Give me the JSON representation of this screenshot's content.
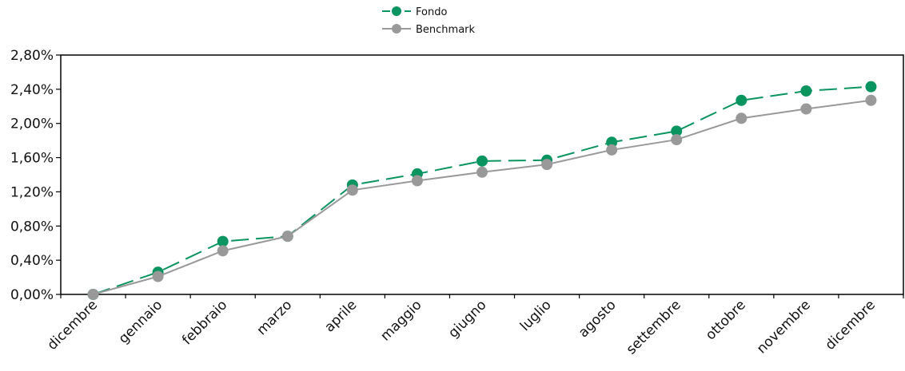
{
  "chart_data": {
    "type": "line",
    "title": "",
    "xlabel": "",
    "ylabel": "",
    "categories": [
      "dicembre",
      "gennaio",
      "febbraio",
      "marzo",
      "aprile",
      "maggio",
      "giugno",
      "luglio",
      "agosto",
      "settembre",
      "ottobre",
      "novembre",
      "dicembre"
    ],
    "ylim": [
      0,
      2.8
    ],
    "yticks": [
      0,
      0.4,
      0.8,
      1.2,
      1.6,
      2.0,
      2.4,
      2.8
    ],
    "ytick_labels": [
      "0,00%",
      "0,40%",
      "0,80%",
      "1,20%",
      "1,60%",
      "2,00%",
      "2,40%",
      "2,80%"
    ],
    "grid": false,
    "legend_position": "top-center",
    "series": [
      {
        "name": "Fondo",
        "color": "#0a9460",
        "line_style": "dashed",
        "values": [
          0.0,
          0.26,
          0.62,
          0.68,
          1.28,
          1.41,
          1.56,
          1.57,
          1.78,
          1.91,
          2.27,
          2.38,
          2.43
        ]
      },
      {
        "name": "Benchmark",
        "color": "#999999",
        "line_style": "solid",
        "values": [
          0.0,
          0.21,
          0.51,
          0.68,
          1.22,
          1.33,
          1.43,
          1.52,
          1.69,
          1.81,
          2.06,
          2.17,
          2.27
        ]
      }
    ]
  }
}
